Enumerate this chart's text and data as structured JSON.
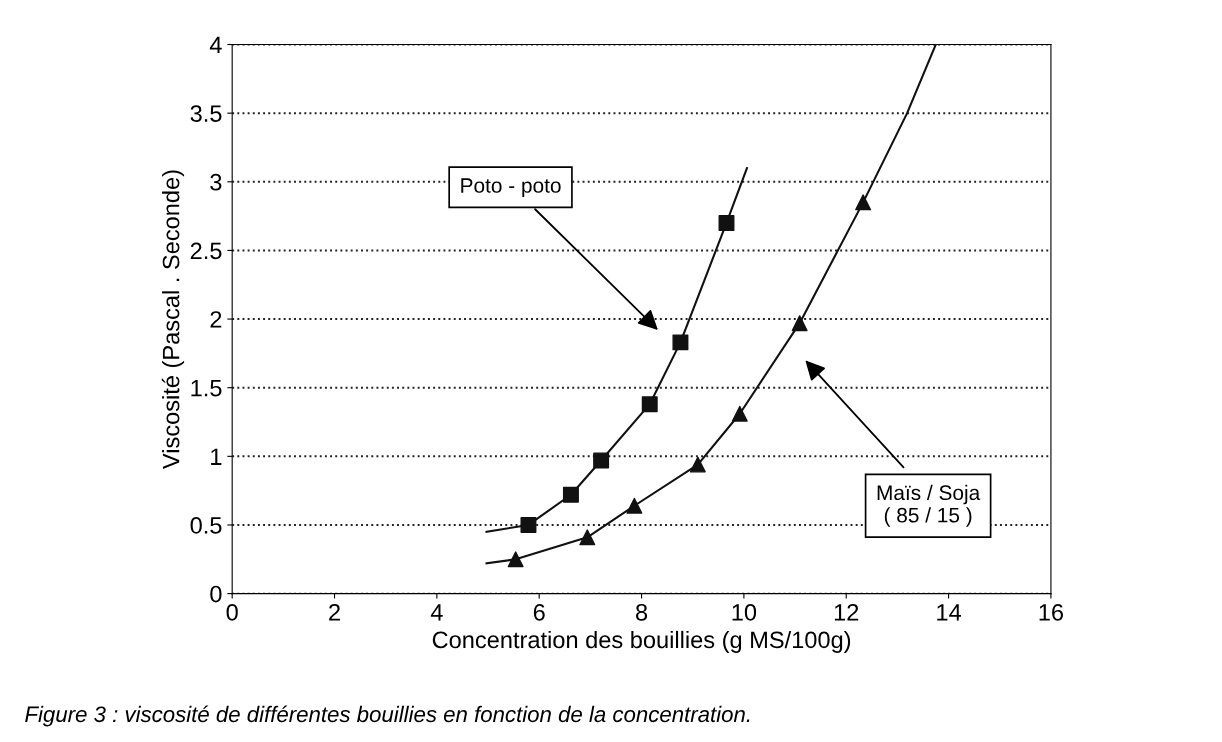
{
  "chart_data": {
    "type": "line",
    "xlabel": "Concentration des bouillies (g MS/100g)",
    "ylabel": "Viscosité (Pascal . Seconde)",
    "xlim": [
      0,
      16
    ],
    "xticks": [
      0,
      2,
      4,
      6,
      8,
      10,
      12,
      14,
      16
    ],
    "ylim": [
      0,
      4
    ],
    "yticks": [
      0,
      0.5,
      1,
      1.5,
      2,
      2.5,
      3,
      3.5,
      4
    ],
    "grid": "y",
    "legend": false,
    "series": [
      {
        "color": "#111111",
        "marker": "none",
        "line_style": "solid",
        "x": [
          4.97,
          5.79,
          6.62,
          7.21,
          8.16,
          8.76,
          9.66,
          10.06
        ],
        "values": [
          0.45,
          0.5,
          0.72,
          0.97,
          1.38,
          1.83,
          2.7,
          3.1
        ]
      },
      {
        "type": "scatter",
        "color": "#111111",
        "marker": "square",
        "x": [
          5.79,
          6.62,
          7.21,
          8.16,
          8.76,
          9.66
        ],
        "values": [
          0.5,
          0.72,
          0.97,
          1.38,
          1.83,
          2.7
        ]
      },
      {
        "color": "#111111",
        "marker": "none",
        "line_style": "solid",
        "x": [
          4.97,
          5.54,
          6.94,
          7.86,
          9.1,
          9.92,
          11.09,
          12.33,
          13.19,
          13.75
        ],
        "values": [
          0.22,
          0.25,
          0.41,
          0.64,
          0.94,
          1.31,
          1.97,
          2.85,
          3.5,
          4.0
        ]
      },
      {
        "type": "scatter",
        "color": "#111111",
        "marker": "triangle",
        "x": [
          5.54,
          6.94,
          7.86,
          9.1,
          9.92,
          11.09,
          12.33
        ],
        "values": [
          0.25,
          0.41,
          0.64,
          0.94,
          1.31,
          1.97,
          2.85
        ]
      }
    ],
    "annotations": [
      "Poto - poto",
      "Maïs / Soja\n( 85 / 15 )",
      "Figure 3 : viscosité de différentes bouillies en fonction de la concentration."
    ]
  }
}
